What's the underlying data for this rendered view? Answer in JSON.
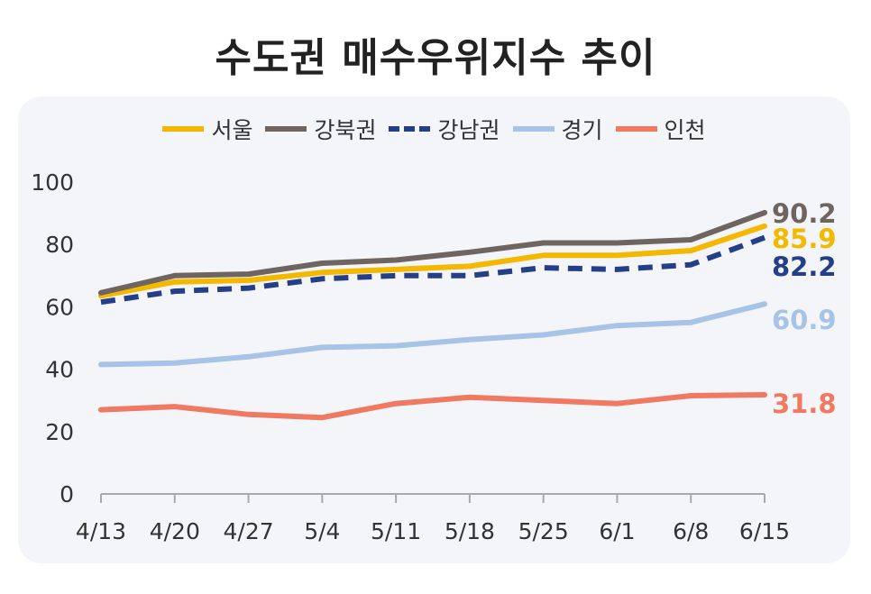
{
  "title": "수도권 매수우위지수 추이",
  "chart_data": {
    "type": "line",
    "title": "수도권 매수우위지수 추이",
    "xlabel": "",
    "ylabel": "",
    "ylim": [
      0,
      100
    ],
    "yticks": [
      0,
      20,
      40,
      60,
      80,
      100
    ],
    "categories": [
      "4/13",
      "4/20",
      "4/27",
      "5/4",
      "5/11",
      "5/18",
      "5/25",
      "6/1",
      "6/8",
      "6/15"
    ],
    "legend_position": "top",
    "grid": false,
    "series": [
      {
        "name": "서울",
        "color": "#f5b800",
        "dashed": false,
        "values": [
          63.5,
          68.0,
          68.5,
          71.0,
          72.0,
          73.0,
          76.5,
          76.5,
          78.0,
          85.9
        ],
        "end_label": "85.9"
      },
      {
        "name": "강북권",
        "color": "#6e6560",
        "dashed": false,
        "values": [
          64.5,
          70.0,
          70.5,
          74.0,
          75.0,
          77.5,
          80.5,
          80.5,
          81.5,
          90.2
        ],
        "end_label": "90.2"
      },
      {
        "name": "강남권",
        "color": "#243f87",
        "dashed": true,
        "values": [
          61.5,
          65.0,
          66.0,
          69.0,
          70.0,
          70.0,
          72.5,
          72.0,
          73.5,
          82.2
        ],
        "end_label": "82.2"
      },
      {
        "name": "경기",
        "color": "#a7c3e6",
        "dashed": false,
        "values": [
          41.5,
          42.0,
          44.0,
          47.0,
          47.5,
          49.5,
          51.0,
          54.0,
          55.0,
          60.9
        ],
        "end_label": "60.9"
      },
      {
        "name": "인천",
        "color": "#f07a61",
        "dashed": false,
        "values": [
          27.0,
          28.0,
          25.5,
          24.5,
          29.0,
          31.0,
          30.0,
          29.0,
          31.5,
          31.8
        ],
        "end_label": "31.8"
      }
    ]
  }
}
